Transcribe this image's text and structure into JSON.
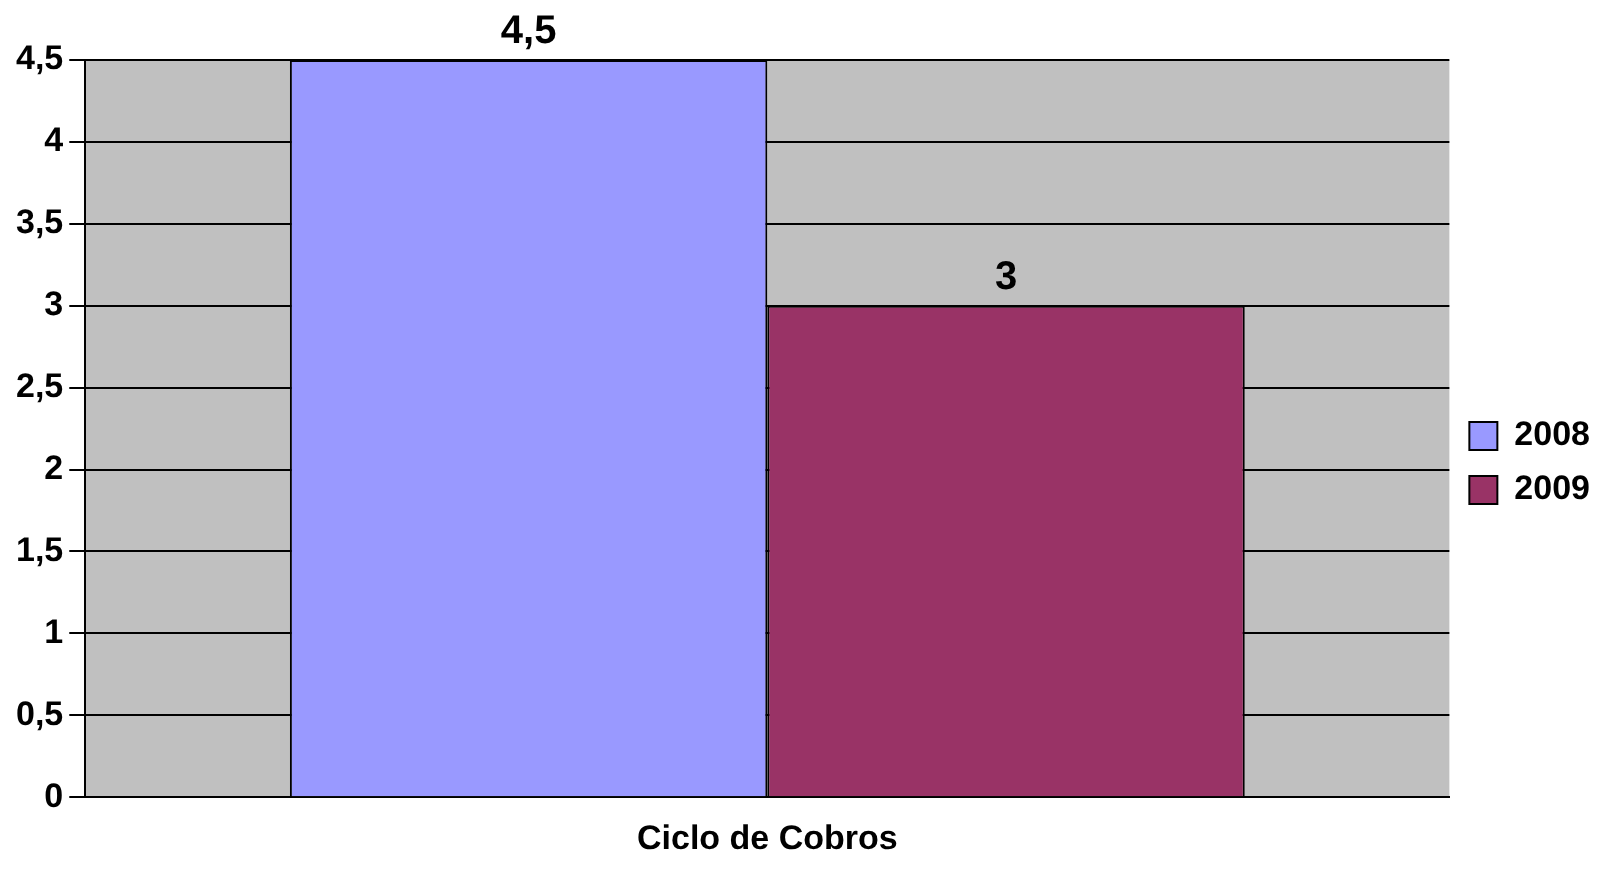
{
  "chart_data": {
    "type": "bar",
    "categories": [
      "Ciclo de Cobros"
    ],
    "series": [
      {
        "name": "2008",
        "color": "#9999ff",
        "values": [
          4.5
        ],
        "value_labels": [
          "4,5"
        ]
      },
      {
        "name": "2009",
        "color": "#993366",
        "values": [
          3
        ],
        "value_labels": [
          "3"
        ]
      }
    ],
    "ylim": [
      0,
      4.5
    ],
    "yticks": [
      0,
      {
        "value": 0.5,
        "label": "0,5"
      },
      1,
      {
        "value": 1.5,
        "label": "1,5"
      },
      2,
      {
        "value": 2.5,
        "label": "2,5"
      },
      3,
      {
        "value": 3.5,
        "label": "3,5"
      },
      4,
      {
        "value": 4.5,
        "label": "4,5"
      }
    ],
    "grid": "y",
    "legend": "right"
  }
}
